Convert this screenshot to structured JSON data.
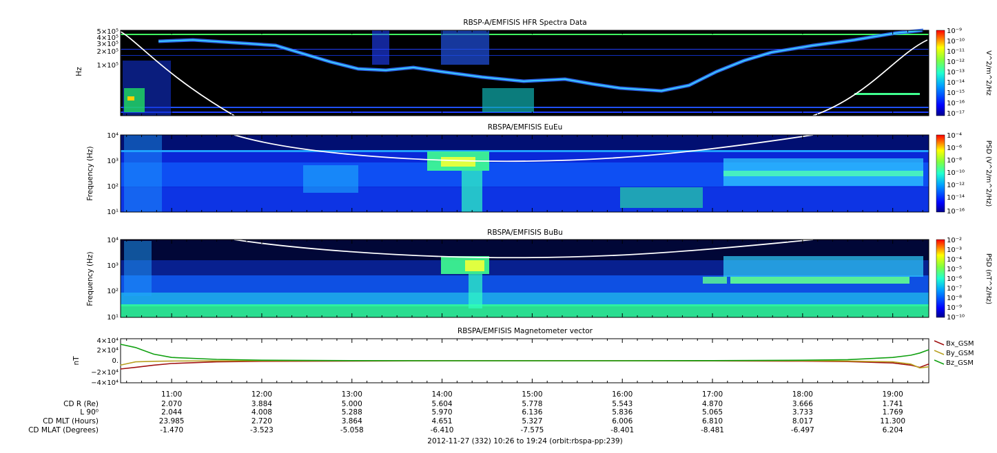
{
  "panels": [
    {
      "title": "RBSP-A/EMFISIS  HFR Spectra Data",
      "ylabel": "Hz",
      "ytick_labels": [
        "5×10⁵",
        "4×10⁵",
        "3×10⁵",
        "2×10⁵",
        "1×10⁵"
      ],
      "colorbar_label": "V^2/m^2/Hz",
      "colorbar_ticks": [
        "10⁻⁹",
        "10⁻¹⁰",
        "10⁻¹¹",
        "10⁻¹²",
        "10⁻¹³",
        "10⁻¹⁴",
        "10⁻¹⁵",
        "10⁻¹⁶",
        "10⁻¹⁷"
      ]
    },
    {
      "title": "RBSPA/EMFISIS  EuEu",
      "ylabel": "Frequency (Hz)",
      "ytick_labels": [
        "10⁴",
        "10³",
        "10²",
        "10¹"
      ],
      "colorbar_label": "PSD (V^2/m^2/Hz)",
      "colorbar_ticks": [
        "10⁻⁴",
        "10⁻⁶",
        "10⁻⁸",
        "10⁻¹⁰",
        "10⁻¹²",
        "10⁻¹⁴",
        "10⁻¹⁶"
      ]
    },
    {
      "title": "RBSPA/EMFISIS  BuBu",
      "ylabel": "Frequency (Hz)",
      "ytick_labels": [
        "10⁴",
        "10³",
        "10²",
        "10¹"
      ],
      "colorbar_label": "PSD (nT^2/Hz)",
      "colorbar_ticks": [
        "10⁻²",
        "10⁻³",
        "10⁻⁴",
        "10⁻⁵",
        "10⁻⁶",
        "10⁻⁷",
        "10⁻⁸",
        "10⁻⁹",
        "10⁻¹⁰"
      ]
    },
    {
      "title": "RBSPA/EMFISIS  Magnetometer vector",
      "ylabel": "nT",
      "ytick_labels": [
        "4×10⁴",
        "2×10⁴",
        "0.",
        "−2×10⁴",
        "−4×10⁴"
      ]
    }
  ],
  "time_ticks": [
    "11:00",
    "12:00",
    "13:00",
    "14:00",
    "15:00",
    "16:00",
    "17:00",
    "18:00",
    "19:00"
  ],
  "ephemeris": [
    {
      "label": "CD R (Re)",
      "values": [
        "2.070",
        "3.884",
        "5.000",
        "5.604",
        "5.778",
        "5.543",
        "4.870",
        "3.666",
        "1.741"
      ]
    },
    {
      "label": "L 90⁰",
      "values": [
        "2.044",
        "4.008",
        "5.288",
        "5.970",
        "6.136",
        "5.836",
        "5.065",
        "3.733",
        "1.769"
      ]
    },
    {
      "label": "CD MLT (Hours)",
      "values": [
        "23.985",
        "2.720",
        "3.864",
        "4.651",
        "5.327",
        "6.006",
        "6.810",
        "8.017",
        "11.300"
      ]
    },
    {
      "label": "CD MLAT (Degrees)",
      "values": [
        "-1.470",
        "-3.523",
        "-5.058",
        "-6.410",
        "-7.575",
        "-8.401",
        "-8.481",
        "-6.497",
        "6.204"
      ]
    }
  ],
  "footer": "2012-11-27 (332) 10:26 to 19:24 (orbit:rbspa-pp:239)",
  "legend": [
    {
      "name": "Bx_GSM",
      "color": "#a01010"
    },
    {
      "name": "By_GSM",
      "color": "#b8a020"
    },
    {
      "name": "Bz_GSM",
      "color": "#10a010"
    }
  ],
  "chart_data": [
    {
      "type": "heatmap",
      "title": "RBSP-A/EMFISIS  HFR Spectra Data",
      "ylabel": "Hz",
      "x_range": [
        "10:26",
        "19:24"
      ],
      "colorbar": {
        "label": "V^2/m^2/Hz",
        "range": [
          "1e-17",
          "1e-9"
        ],
        "scale": "log"
      },
      "overlay_line": {
        "color": "#ffffff"
      },
      "grid": false
    },
    {
      "type": "heatmap",
      "title": "RBSPA/EMFISIS  EuEu",
      "ylabel": "Frequency (Hz)",
      "ylim": [
        10,
        10000
      ],
      "yscale": "log",
      "x_range": [
        "10:26",
        "19:24"
      ],
      "colorbar": {
        "label": "PSD (V^2/m^2/Hz)",
        "range": [
          "1e-16",
          "1e-4"
        ],
        "scale": "log"
      },
      "overlay_line": {
        "color": "#ffffff"
      },
      "grid": false
    },
    {
      "type": "heatmap",
      "title": "RBSPA/EMFISIS  BuBu",
      "ylabel": "Frequency (Hz)",
      "ylim": [
        10,
        10000
      ],
      "yscale": "log",
      "x_range": [
        "10:26",
        "19:24"
      ],
      "colorbar": {
        "label": "PSD (nT^2/Hz)",
        "range": [
          "1e-10",
          "1e-2"
        ],
        "scale": "log"
      },
      "overlay_line": {
        "color": "#ffffff"
      },
      "grid": false
    },
    {
      "type": "line",
      "title": "RBSPA/EMFISIS  Magnetometer vector",
      "ylabel": "nT",
      "ylim": [
        -40000,
        40000
      ],
      "x": [
        10.43,
        10.6,
        10.8,
        11.0,
        11.5,
        12.0,
        13.0,
        14.0,
        15.0,
        16.0,
        17.0,
        18.0,
        18.5,
        19.0,
        19.2,
        19.3,
        19.4
      ],
      "series": [
        {
          "name": "Bx_GSM",
          "values": [
            -15000,
            -12000,
            -8000,
            -5000,
            -2000,
            -1000,
            -500,
            0,
            0,
            0,
            -200,
            -800,
            -1500,
            -4000,
            -8000,
            -12000,
            -6000
          ]
        },
        {
          "name": "By_GSM",
          "values": [
            -8000,
            -2000,
            -1000,
            -500,
            -200,
            0,
            0,
            0,
            0,
            0,
            0,
            0,
            -500,
            -2000,
            -6000,
            -13000,
            -11000
          ]
        },
        {
          "name": "Bz_GSM",
          "values": [
            30000,
            24000,
            12000,
            6000,
            2500,
            1000,
            200,
            0,
            0,
            0,
            200,
            1000,
            2000,
            6000,
            10000,
            14000,
            20000
          ]
        }
      ],
      "legend_position": "right",
      "grid": false
    }
  ]
}
